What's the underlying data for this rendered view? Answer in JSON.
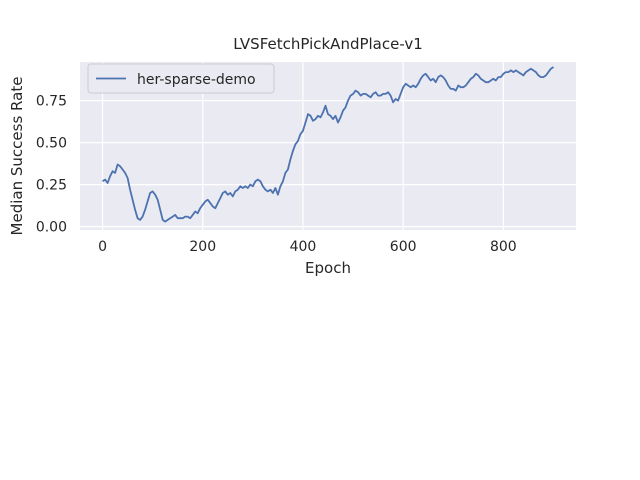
{
  "chart_data": {
    "type": "line",
    "title": "LVSFetchPickAndPlace-v1",
    "xlabel": "Epoch",
    "ylabel": "Median Success Rate",
    "xlim": [
      -45,
      945
    ],
    "ylim": [
      -0.02,
      0.98
    ],
    "xticks": [
      0,
      200,
      400,
      600,
      800
    ],
    "xtick_labels": [
      "0",
      "200",
      "400",
      "600",
      "800"
    ],
    "yticks": [
      0.0,
      0.25,
      0.5,
      0.75
    ],
    "ytick_labels": [
      "0.00",
      "0.25",
      "0.50",
      "0.75"
    ],
    "grid": true,
    "legend_position": "top-left",
    "colors": {
      "background": "#eaeaf2",
      "grid": "#ffffff",
      "line": "#4c72b0",
      "text": "#262626"
    },
    "series": [
      {
        "name": "her-sparse-demo",
        "x": [
          0,
          5,
          10,
          15,
          20,
          25,
          30,
          35,
          40,
          45,
          50,
          55,
          60,
          65,
          70,
          75,
          80,
          85,
          90,
          95,
          100,
          105,
          110,
          115,
          120,
          125,
          130,
          135,
          140,
          145,
          150,
          155,
          160,
          165,
          170,
          175,
          180,
          185,
          190,
          195,
          200,
          205,
          210,
          215,
          220,
          225,
          230,
          235,
          240,
          245,
          250,
          255,
          260,
          265,
          270,
          275,
          280,
          285,
          290,
          295,
          300,
          305,
          310,
          315,
          320,
          325,
          330,
          335,
          340,
          345,
          350,
          355,
          360,
          365,
          370,
          375,
          380,
          385,
          390,
          395,
          400,
          405,
          410,
          415,
          420,
          425,
          430,
          435,
          440,
          445,
          450,
          455,
          460,
          465,
          470,
          475,
          480,
          485,
          490,
          495,
          500,
          505,
          510,
          515,
          520,
          525,
          530,
          535,
          540,
          545,
          550,
          555,
          560,
          565,
          570,
          575,
          580,
          585,
          590,
          595,
          600,
          605,
          610,
          615,
          620,
          625,
          630,
          635,
          640,
          645,
          650,
          655,
          660,
          665,
          670,
          675,
          680,
          685,
          690,
          695,
          700,
          705,
          710,
          715,
          720,
          725,
          730,
          735,
          740,
          745,
          750,
          755,
          760,
          765,
          770,
          775,
          780,
          785,
          790,
          795,
          800,
          805,
          810,
          815,
          820,
          825,
          830,
          835,
          840,
          845,
          850,
          855,
          860,
          865,
          870,
          875,
          880,
          885,
          890,
          895,
          900
        ],
        "y": [
          0.27,
          0.28,
          0.26,
          0.3,
          0.33,
          0.32,
          0.37,
          0.36,
          0.34,
          0.32,
          0.29,
          0.22,
          0.16,
          0.1,
          0.05,
          0.04,
          0.06,
          0.1,
          0.15,
          0.2,
          0.21,
          0.19,
          0.16,
          0.1,
          0.04,
          0.03,
          0.04,
          0.05,
          0.06,
          0.07,
          0.05,
          0.05,
          0.05,
          0.06,
          0.06,
          0.05,
          0.07,
          0.09,
          0.08,
          0.11,
          0.13,
          0.15,
          0.16,
          0.14,
          0.12,
          0.11,
          0.14,
          0.17,
          0.2,
          0.21,
          0.19,
          0.2,
          0.18,
          0.21,
          0.22,
          0.24,
          0.23,
          0.24,
          0.23,
          0.25,
          0.24,
          0.27,
          0.28,
          0.27,
          0.24,
          0.22,
          0.21,
          0.22,
          0.2,
          0.23,
          0.19,
          0.24,
          0.27,
          0.32,
          0.34,
          0.4,
          0.45,
          0.49,
          0.51,
          0.55,
          0.57,
          0.62,
          0.67,
          0.66,
          0.63,
          0.64,
          0.66,
          0.65,
          0.68,
          0.72,
          0.67,
          0.66,
          0.64,
          0.66,
          0.62,
          0.65,
          0.69,
          0.71,
          0.75,
          0.78,
          0.79,
          0.81,
          0.8,
          0.78,
          0.79,
          0.79,
          0.78,
          0.77,
          0.79,
          0.8,
          0.78,
          0.78,
          0.79,
          0.79,
          0.8,
          0.78,
          0.74,
          0.76,
          0.75,
          0.79,
          0.83,
          0.85,
          0.84,
          0.83,
          0.84,
          0.83,
          0.85,
          0.88,
          0.9,
          0.91,
          0.89,
          0.87,
          0.88,
          0.86,
          0.89,
          0.9,
          0.89,
          0.87,
          0.84,
          0.82,
          0.82,
          0.81,
          0.84,
          0.83,
          0.83,
          0.84,
          0.86,
          0.88,
          0.89,
          0.91,
          0.9,
          0.88,
          0.87,
          0.86,
          0.86,
          0.87,
          0.88,
          0.87,
          0.89,
          0.89,
          0.91,
          0.92,
          0.92,
          0.93,
          0.92,
          0.93,
          0.92,
          0.91,
          0.9,
          0.92,
          0.93,
          0.94,
          0.93,
          0.92,
          0.9,
          0.89,
          0.89,
          0.9,
          0.92,
          0.94,
          0.95
        ]
      }
    ]
  }
}
